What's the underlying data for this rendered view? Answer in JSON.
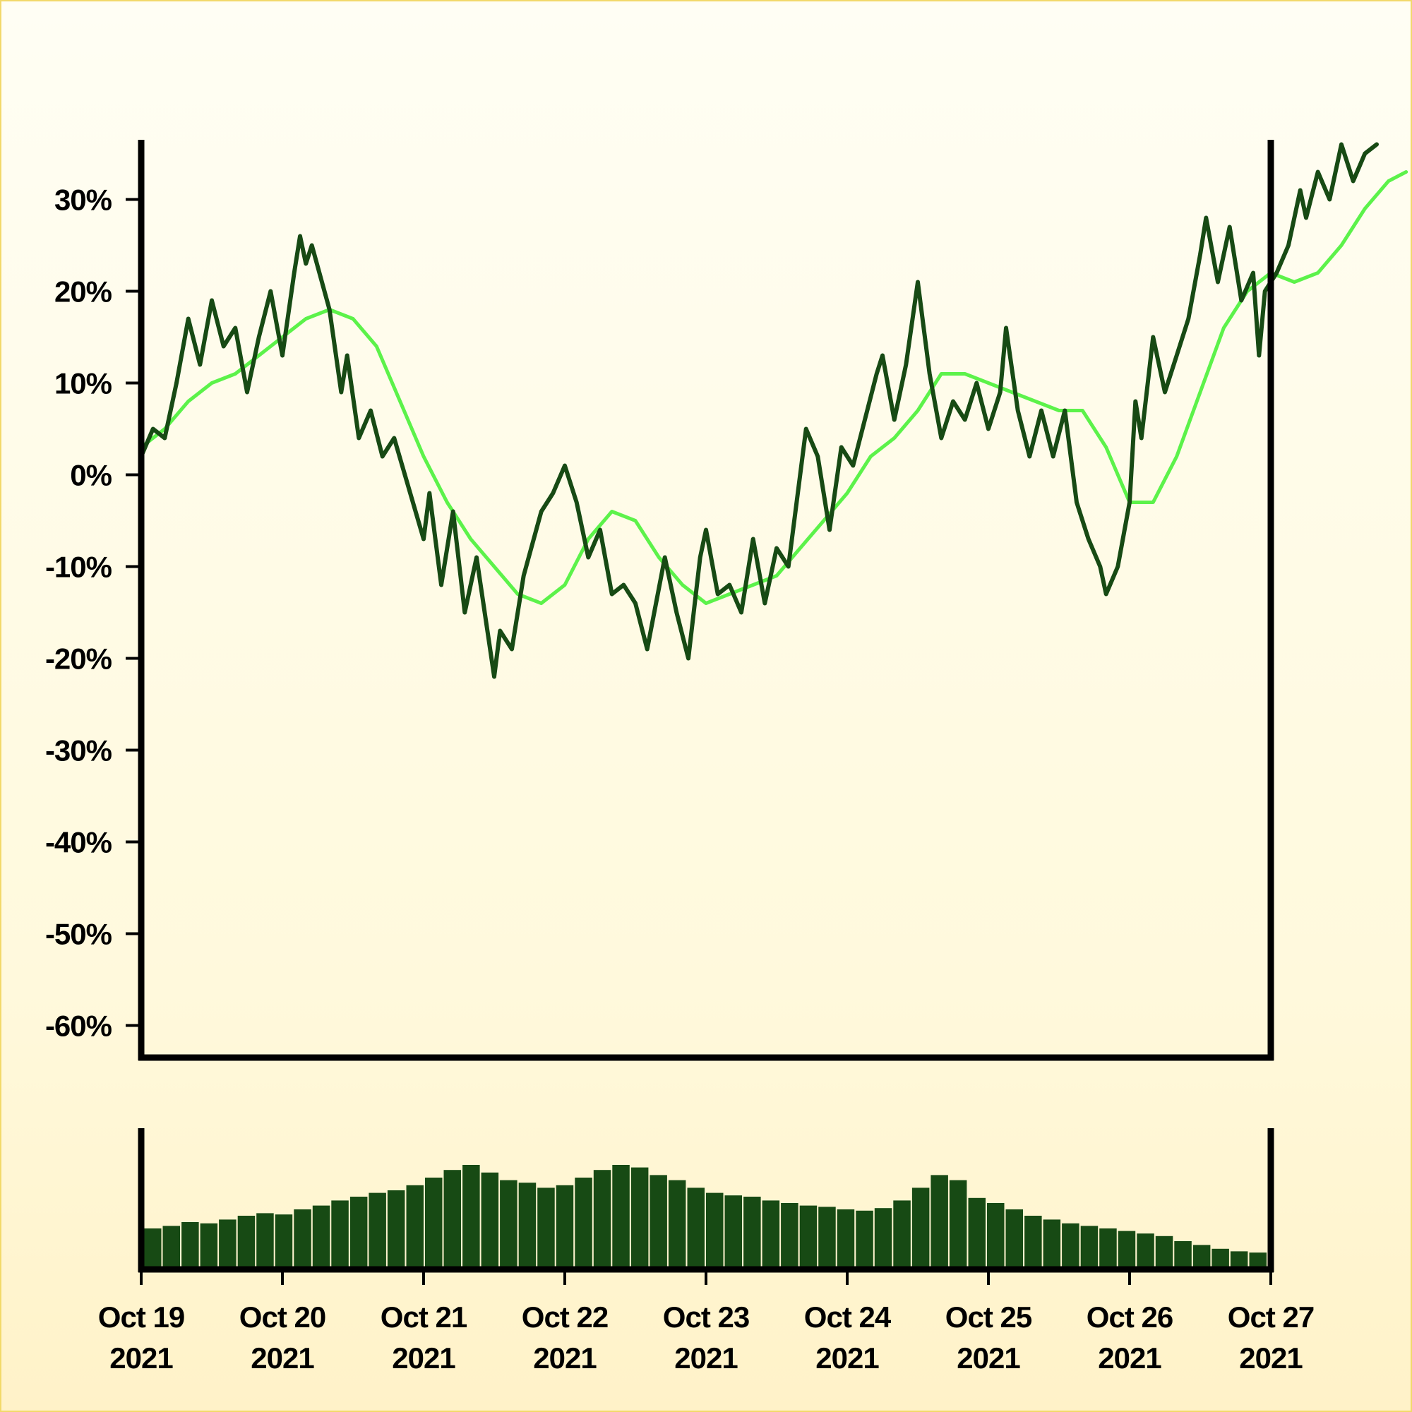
{
  "colors": {
    "price_line": "#174a14",
    "moving_average": "#5cf24a",
    "volume_bars": "#174a14",
    "axes": "#000000"
  },
  "chart_data": [
    {
      "type": "line",
      "title": "",
      "xlabel": "",
      "ylabel": "",
      "y_unit": "percent",
      "ylim": [
        -63.5,
        36.5
      ],
      "xlim": [
        "2021-10-19",
        "2021-10-27"
      ],
      "grid": false,
      "legend": "none",
      "y_ticks": [
        {
          "value": 30,
          "label": "30%"
        },
        {
          "value": 20,
          "label": "20%"
        },
        {
          "value": 10,
          "label": "10%"
        },
        {
          "value": 0,
          "label": "0%"
        },
        {
          "value": -10,
          "label": "-10%"
        },
        {
          "value": -20,
          "label": "-20%"
        },
        {
          "value": -30,
          "label": "-30%"
        },
        {
          "value": -40,
          "label": "-40%"
        },
        {
          "value": -50,
          "label": "-50%"
        },
        {
          "value": -60,
          "label": "-60%"
        }
      ],
      "x_ticks": [
        {
          "value": "2021-10-19",
          "line1": "Oct 19",
          "line2": "2021"
        },
        {
          "value": "2021-10-20",
          "line1": "Oct 20",
          "line2": "2021"
        },
        {
          "value": "2021-10-21",
          "line1": "Oct 21",
          "line2": "2021"
        },
        {
          "value": "2021-10-22",
          "line1": "Oct 22",
          "line2": "2021"
        },
        {
          "value": "2021-10-23",
          "line1": "Oct 23",
          "line2": "2021"
        },
        {
          "value": "2021-10-24",
          "line1": "Oct 24",
          "line2": "2021"
        },
        {
          "value": "2021-10-25",
          "line1": "Oct 25",
          "line2": "2021"
        },
        {
          "value": "2021-10-26",
          "line1": "Oct 26",
          "line2": "2021"
        },
        {
          "value": "2021-10-27",
          "line1": "Oct 27",
          "line2": "2021"
        }
      ],
      "series": [
        {
          "role": "price",
          "points": [
            [
              "2021-10-19 00:00",
              2
            ],
            [
              "2021-10-19 02:00",
              5
            ],
            [
              "2021-10-19 04:00",
              4
            ],
            [
              "2021-10-19 06:00",
              10
            ],
            [
              "2021-10-19 08:00",
              17
            ],
            [
              "2021-10-19 10:00",
              12
            ],
            [
              "2021-10-19 12:00",
              19
            ],
            [
              "2021-10-19 14:00",
              14
            ],
            [
              "2021-10-19 16:00",
              16
            ],
            [
              "2021-10-19 18:00",
              9
            ],
            [
              "2021-10-19 20:00",
              15
            ],
            [
              "2021-10-19 22:00",
              20
            ],
            [
              "2021-10-20 00:00",
              13
            ],
            [
              "2021-10-20 02:00",
              22
            ],
            [
              "2021-10-20 03:00",
              26
            ],
            [
              "2021-10-20 04:00",
              23
            ],
            [
              "2021-10-20 05:00",
              25
            ],
            [
              "2021-10-20 08:00",
              18
            ],
            [
              "2021-10-20 10:00",
              9
            ],
            [
              "2021-10-20 11:00",
              13
            ],
            [
              "2021-10-20 13:00",
              4
            ],
            [
              "2021-10-20 15:00",
              7
            ],
            [
              "2021-10-20 17:00",
              2
            ],
            [
              "2021-10-20 19:00",
              4
            ],
            [
              "2021-10-21 00:00",
              -7
            ],
            [
              "2021-10-21 01:00",
              -2
            ],
            [
              "2021-10-21 03:00",
              -12
            ],
            [
              "2021-10-21 05:00",
              -4
            ],
            [
              "2021-10-21 07:00",
              -15
            ],
            [
              "2021-10-21 09:00",
              -9
            ],
            [
              "2021-10-21 12:00",
              -22
            ],
            [
              "2021-10-21 13:00",
              -17
            ],
            [
              "2021-10-21 15:00",
              -19
            ],
            [
              "2021-10-21 17:00",
              -11
            ],
            [
              "2021-10-21 20:00",
              -4
            ],
            [
              "2021-10-21 22:00",
              -2
            ],
            [
              "2021-10-22 00:00",
              1
            ],
            [
              "2021-10-22 02:00",
              -3
            ],
            [
              "2021-10-22 04:00",
              -9
            ],
            [
              "2021-10-22 06:00",
              -6
            ],
            [
              "2021-10-22 08:00",
              -13
            ],
            [
              "2021-10-22 10:00",
              -12
            ],
            [
              "2021-10-22 12:00",
              -14
            ],
            [
              "2021-10-22 14:00",
              -19
            ],
            [
              "2021-10-22 17:00",
              -9
            ],
            [
              "2021-10-22 19:00",
              -15
            ],
            [
              "2021-10-22 21:00",
              -20
            ],
            [
              "2021-10-22 23:00",
              -9
            ],
            [
              "2021-10-23 00:00",
              -6
            ],
            [
              "2021-10-23 02:00",
              -13
            ],
            [
              "2021-10-23 04:00",
              -12
            ],
            [
              "2021-10-23 06:00",
              -15
            ],
            [
              "2021-10-23 08:00",
              -7
            ],
            [
              "2021-10-23 10:00",
              -14
            ],
            [
              "2021-10-23 12:00",
              -8
            ],
            [
              "2021-10-23 14:00",
              -10
            ],
            [
              "2021-10-23 17:00",
              5
            ],
            [
              "2021-10-23 19:00",
              2
            ],
            [
              "2021-10-23 21:00",
              -6
            ],
            [
              "2021-10-23 23:00",
              3
            ],
            [
              "2021-10-24 01:00",
              1
            ],
            [
              "2021-10-24 03:00",
              6
            ],
            [
              "2021-10-24 05:00",
              11
            ],
            [
              "2021-10-24 06:00",
              13
            ],
            [
              "2021-10-24 08:00",
              6
            ],
            [
              "2021-10-24 10:00",
              12
            ],
            [
              "2021-10-24 12:00",
              21
            ],
            [
              "2021-10-24 14:00",
              11
            ],
            [
              "2021-10-24 16:00",
              4
            ],
            [
              "2021-10-24 18:00",
              8
            ],
            [
              "2021-10-24 20:00",
              6
            ],
            [
              "2021-10-24 22:00",
              10
            ],
            [
              "2021-10-25 00:00",
              5
            ],
            [
              "2021-10-25 02:00",
              9
            ],
            [
              "2021-10-25 03:00",
              16
            ],
            [
              "2021-10-25 05:00",
              7
            ],
            [
              "2021-10-25 07:00",
              2
            ],
            [
              "2021-10-25 09:00",
              7
            ],
            [
              "2021-10-25 11:00",
              2
            ],
            [
              "2021-10-25 13:00",
              7
            ],
            [
              "2021-10-25 15:00",
              -3
            ],
            [
              "2021-10-25 17:00",
              -7
            ],
            [
              "2021-10-25 19:00",
              -10
            ],
            [
              "2021-10-25 20:00",
              -13
            ],
            [
              "2021-10-25 22:00",
              -10
            ],
            [
              "2021-10-26 00:00",
              -3
            ],
            [
              "2021-10-26 01:00",
              8
            ],
            [
              "2021-10-26 02:00",
              4
            ],
            [
              "2021-10-26 04:00",
              15
            ],
            [
              "2021-10-26 06:00",
              9
            ],
            [
              "2021-10-26 08:00",
              13
            ],
            [
              "2021-10-26 10:00",
              17
            ],
            [
              "2021-10-26 12:00",
              24
            ],
            [
              "2021-10-26 13:00",
              28
            ],
            [
              "2021-10-26 15:00",
              21
            ],
            [
              "2021-10-26 17:00",
              27
            ],
            [
              "2021-10-26 19:00",
              19
            ],
            [
              "2021-10-26 21:00",
              22
            ],
            [
              "2021-10-26 22:00",
              13
            ],
            [
              "2021-10-26 23:00",
              20
            ],
            [
              "2021-10-27 01:00",
              22
            ],
            [
              "2021-10-27 03:00",
              25
            ],
            [
              "2021-10-27 05:00",
              31
            ],
            [
              "2021-10-27 06:00",
              28
            ],
            [
              "2021-10-27 08:00",
              33
            ],
            [
              "2021-10-27 10:00",
              30
            ],
            [
              "2021-10-27 12:00",
              36
            ],
            [
              "2021-10-27 14:00",
              32
            ],
            [
              "2021-10-27 16:00",
              35
            ],
            [
              "2021-10-27 18:00",
              36
            ]
          ]
        },
        {
          "role": "moving_average",
          "points": [
            [
              "2021-10-19 00:00",
              3
            ],
            [
              "2021-10-19 04:00",
              5
            ],
            [
              "2021-10-19 08:00",
              8
            ],
            [
              "2021-10-19 12:00",
              10
            ],
            [
              "2021-10-19 16:00",
              11
            ],
            [
              "2021-10-19 20:00",
              13
            ],
            [
              "2021-10-20 00:00",
              15
            ],
            [
              "2021-10-20 04:00",
              17
            ],
            [
              "2021-10-20 08:00",
              18
            ],
            [
              "2021-10-20 12:00",
              17
            ],
            [
              "2021-10-20 16:00",
              14
            ],
            [
              "2021-10-20 20:00",
              8
            ],
            [
              "2021-10-21 00:00",
              2
            ],
            [
              "2021-10-21 04:00",
              -3
            ],
            [
              "2021-10-21 08:00",
              -7
            ],
            [
              "2021-10-21 12:00",
              -10
            ],
            [
              "2021-10-21 16:00",
              -13
            ],
            [
              "2021-10-21 20:00",
              -14
            ],
            [
              "2021-10-22 00:00",
              -12
            ],
            [
              "2021-10-22 04:00",
              -7
            ],
            [
              "2021-10-22 08:00",
              -4
            ],
            [
              "2021-10-22 12:00",
              -5
            ],
            [
              "2021-10-22 16:00",
              -9
            ],
            [
              "2021-10-22 20:00",
              -12
            ],
            [
              "2021-10-23 00:00",
              -14
            ],
            [
              "2021-10-23 04:00",
              -13
            ],
            [
              "2021-10-23 08:00",
              -12
            ],
            [
              "2021-10-23 12:00",
              -11
            ],
            [
              "2021-10-23 16:00",
              -8
            ],
            [
              "2021-10-23 20:00",
              -5
            ],
            [
              "2021-10-24 00:00",
              -2
            ],
            [
              "2021-10-24 04:00",
              2
            ],
            [
              "2021-10-24 08:00",
              4
            ],
            [
              "2021-10-24 12:00",
              7
            ],
            [
              "2021-10-24 16:00",
              11
            ],
            [
              "2021-10-24 20:00",
              11
            ],
            [
              "2021-10-25 00:00",
              10
            ],
            [
              "2021-10-25 04:00",
              9
            ],
            [
              "2021-10-25 08:00",
              8
            ],
            [
              "2021-10-25 12:00",
              7
            ],
            [
              "2021-10-25 16:00",
              7
            ],
            [
              "2021-10-25 20:00",
              3
            ],
            [
              "2021-10-26 00:00",
              -3
            ],
            [
              "2021-10-26 04:00",
              -3
            ],
            [
              "2021-10-26 08:00",
              2
            ],
            [
              "2021-10-26 12:00",
              9
            ],
            [
              "2021-10-26 16:00",
              16
            ],
            [
              "2021-10-26 20:00",
              20
            ],
            [
              "2021-10-27 00:00",
              22
            ],
            [
              "2021-10-27 04:00",
              21
            ],
            [
              "2021-10-27 08:00",
              22
            ],
            [
              "2021-10-27 12:00",
              25
            ],
            [
              "2021-10-27 16:00",
              29
            ],
            [
              "2021-10-27 20:00",
              32
            ],
            [
              "2021-10-27 23:00",
              33
            ]
          ]
        }
      ]
    },
    {
      "type": "bar",
      "title": "",
      "xlabel": "",
      "ylabel": "",
      "y_scale": "relative",
      "ylim": [
        0,
        1
      ],
      "xlim": [
        "2021-10-19",
        "2021-10-27"
      ],
      "grid": false,
      "legend": "none",
      "series": [
        {
          "role": "volume",
          "values": [
            0.3,
            0.32,
            0.35,
            0.34,
            0.37,
            0.4,
            0.42,
            0.41,
            0.45,
            0.48,
            0.52,
            0.55,
            0.58,
            0.6,
            0.64,
            0.7,
            0.76,
            0.8,
            0.74,
            0.68,
            0.66,
            0.62,
            0.64,
            0.7,
            0.76,
            0.8,
            0.78,
            0.72,
            0.68,
            0.62,
            0.58,
            0.56,
            0.55,
            0.52,
            0.5,
            0.48,
            0.47,
            0.45,
            0.44,
            0.46,
            0.52,
            0.62,
            0.72,
            0.68,
            0.54,
            0.5,
            0.45,
            0.4,
            0.37,
            0.34,
            0.32,
            0.3,
            0.28,
            0.26,
            0.24,
            0.2,
            0.17,
            0.14,
            0.12,
            0.11
          ]
        }
      ]
    }
  ]
}
